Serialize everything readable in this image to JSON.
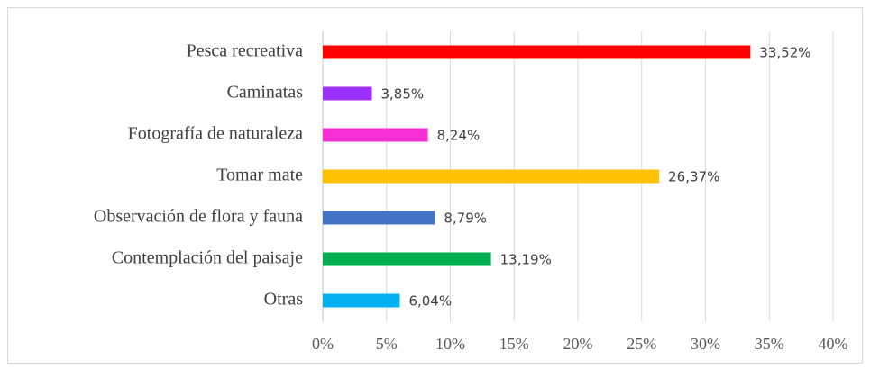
{
  "chart_data": {
    "type": "bar",
    "orientation": "horizontal",
    "categories": [
      "Pesca recreativa",
      "Caminatas",
      "Fotografía de naturaleza",
      "Tomar mate",
      "Observación de flora y fauna",
      "Contemplación del paisaje",
      "Otras"
    ],
    "values": [
      33.52,
      3.85,
      8.24,
      26.37,
      8.79,
      13.19,
      6.04
    ],
    "value_labels": [
      "33,52%",
      "3,85%",
      "8,24%",
      "26,37%",
      "8,79%",
      "13,19%",
      "6,04%"
    ],
    "colors": [
      "#ff0000",
      "#9b30ff",
      "#f72fd4",
      "#ffc000",
      "#4472c4",
      "#00b050",
      "#00b0f0"
    ],
    "xlim": [
      0,
      40
    ],
    "xticks": [
      {
        "value": 0,
        "label": "0%"
      },
      {
        "value": 5,
        "label": "5%"
      },
      {
        "value": 10,
        "label": "10%"
      },
      {
        "value": 15,
        "label": "15%"
      },
      {
        "value": 20,
        "label": "20%"
      },
      {
        "value": 25,
        "label": "25%"
      },
      {
        "value": 30,
        "label": "30%"
      },
      {
        "value": 35,
        "label": "35%"
      },
      {
        "value": 40,
        "label": "40%"
      }
    ],
    "grid": true
  }
}
